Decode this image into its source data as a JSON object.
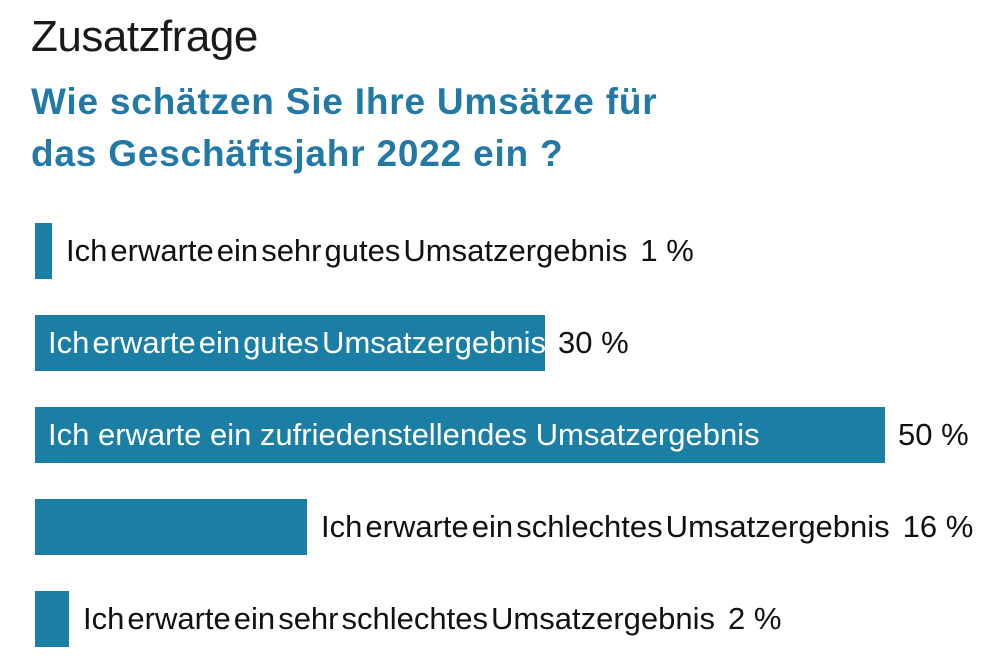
{
  "header": {
    "title": "Zusatzfrage",
    "question_line1": "Wie schätzen Sie Ihre Umsätze für",
    "question_line2": "das Geschäftsjahr 2022 ein ?"
  },
  "colors": {
    "bar": "#1B7EA4",
    "question_text": "#2379A5",
    "title_text": "#1A1A1A",
    "label_outside": "#111111",
    "label_inside": "#FFFFFF"
  },
  "chart_data": {
    "type": "bar",
    "orientation": "horizontal",
    "title": "Zusatzfrage",
    "subtitle": "Wie schätzen Sie Ihre Umsätze für das Geschäftsjahr 2022 ein ?",
    "unit": "%",
    "categories": [
      "Ich erwarte ein sehr gutes Umsatzergebnis",
      "Ich erwarte ein gutes Umsatzergebnis",
      "Ich erwarte ein zufriedenstellendes Umsatzergebnis",
      "Ich erwarte ein schlechtes Umsatzergebnis",
      "Ich erwarte ein sehr schlechtes Umsatzergebnis"
    ],
    "values": [
      1,
      30,
      50,
      16,
      2
    ],
    "value_labels": [
      "1 %",
      "30 %",
      "50 %",
      "16 %",
      "2 %"
    ],
    "label_placement": [
      "outside",
      "inside",
      "inside",
      "outside",
      "outside"
    ],
    "xlim": [
      0,
      50
    ],
    "grid": false,
    "legend": "none",
    "bar_color": "#1B7EA4"
  }
}
